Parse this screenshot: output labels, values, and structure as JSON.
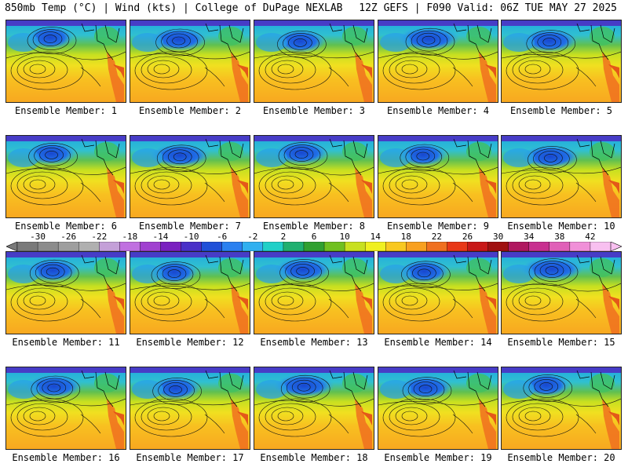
{
  "header": {
    "left": "850mb Temp (°C) | Wind (kts) | College of DuPage NEXLAB",
    "right": "12Z GEFS | F090 Valid: 06Z TUE MAY 27 2025"
  },
  "members": [
    "Ensemble Member: 1",
    "Ensemble Member: 2",
    "Ensemble Member: 3",
    "Ensemble Member: 4",
    "Ensemble Member: 5",
    "Ensemble Member: 6",
    "Ensemble Member: 7",
    "Ensemble Member: 8",
    "Ensemble Member: 9",
    "Ensemble Member: 10",
    "Ensemble Member: 11",
    "Ensemble Member: 12",
    "Ensemble Member: 13",
    "Ensemble Member: 14",
    "Ensemble Member: 15",
    "Ensemble Member: 16",
    "Ensemble Member: 17",
    "Ensemble Member: 18",
    "Ensemble Member: 19",
    "Ensemble Member: 20"
  ],
  "colorbar": {
    "ticks": [
      "-30",
      "-26",
      "-22",
      "-18",
      "-14",
      "-10",
      "-6",
      "-2",
      "2",
      "6",
      "10",
      "14",
      "18",
      "22",
      "26",
      "30",
      "34",
      "38",
      "42"
    ],
    "colors": [
      "#7a7a7a",
      "#8c8c8c",
      "#9e9e9e",
      "#b0b0b0",
      "#c4a0d8",
      "#c070e0",
      "#a040d0",
      "#7a20c0",
      "#4a30c8",
      "#2050d8",
      "#2a80f0",
      "#30b0f0",
      "#20d0c8",
      "#20b070",
      "#30a030",
      "#70c020",
      "#c8e020",
      "#f0f020",
      "#f8c820",
      "#f8a020",
      "#f07020",
      "#e83818",
      "#c81818",
      "#a01010",
      "#b01860",
      "#c83090",
      "#e060b8",
      "#f090d8",
      "#f8c0f0"
    ]
  }
}
